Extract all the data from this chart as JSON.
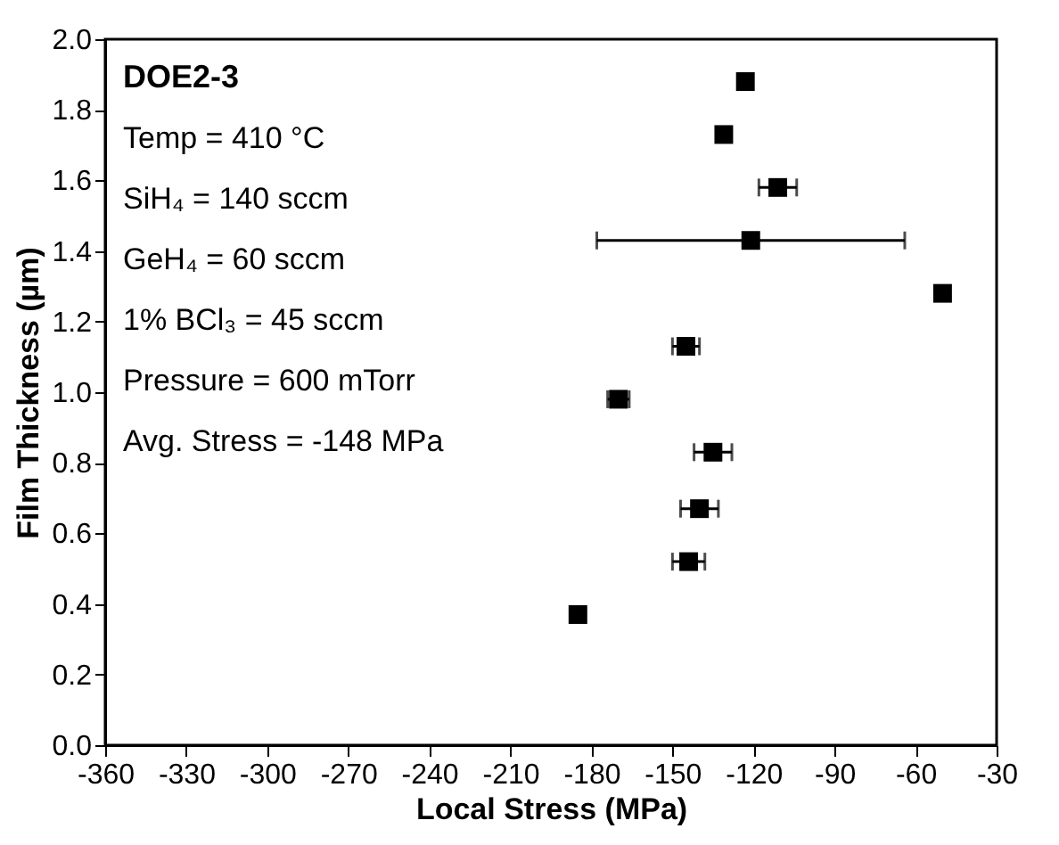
{
  "chart_data": {
    "type": "scatter",
    "xlabel": "Local Stress (MPa)",
    "ylabel": "Film Thickness (µm)",
    "x": [
      -123,
      -131,
      -111,
      -121,
      -50,
      -145,
      -170,
      -135,
      -140,
      -144,
      -185
    ],
    "series": [
      {
        "color": "#000000",
        "values": [
          1.88,
          1.73,
          1.58,
          1.43,
          1.28,
          1.13,
          0.98,
          0.83,
          0.67,
          0.52,
          0.37
        ],
        "xerrors": [
          null,
          null,
          7,
          57,
          null,
          5,
          4,
          7,
          7,
          6,
          null
        ]
      }
    ],
    "xlim": [
      -360,
      -30
    ],
    "xticks": [
      -360,
      -330,
      -300,
      -270,
      -240,
      -210,
      -180,
      -150,
      -120,
      -90,
      -60,
      -30
    ],
    "ylim": [
      0,
      2.0
    ],
    "yticks": [
      {
        "value": 0,
        "label": "0.0"
      },
      {
        "value": 0.2,
        "label": "0.2"
      },
      {
        "value": 0.4,
        "label": "0.4"
      },
      {
        "value": 0.6,
        "label": "0.6"
      },
      {
        "value": 0.8,
        "label": "0.8"
      },
      {
        "value": 1.0,
        "label": "1.0"
      },
      {
        "value": 1.2,
        "label": "1.2"
      },
      {
        "value": 1.4,
        "label": "1.4"
      },
      {
        "value": 1.6,
        "label": "1.6"
      },
      {
        "value": 1.8,
        "label": "1.8"
      },
      {
        "value": 2.0,
        "label": "2.0"
      }
    ],
    "marker": "square",
    "grid": false,
    "annotations": [
      "DOE2-3",
      "Temp = 410 °C",
      "SiH₄ = 140 sccm",
      "GeH₄ = 60 sccm",
      "1% BCl₃ = 45 sccm",
      "Pressure = 600 mTorr",
      "Avg. Stress = -148 MPa"
    ]
  }
}
